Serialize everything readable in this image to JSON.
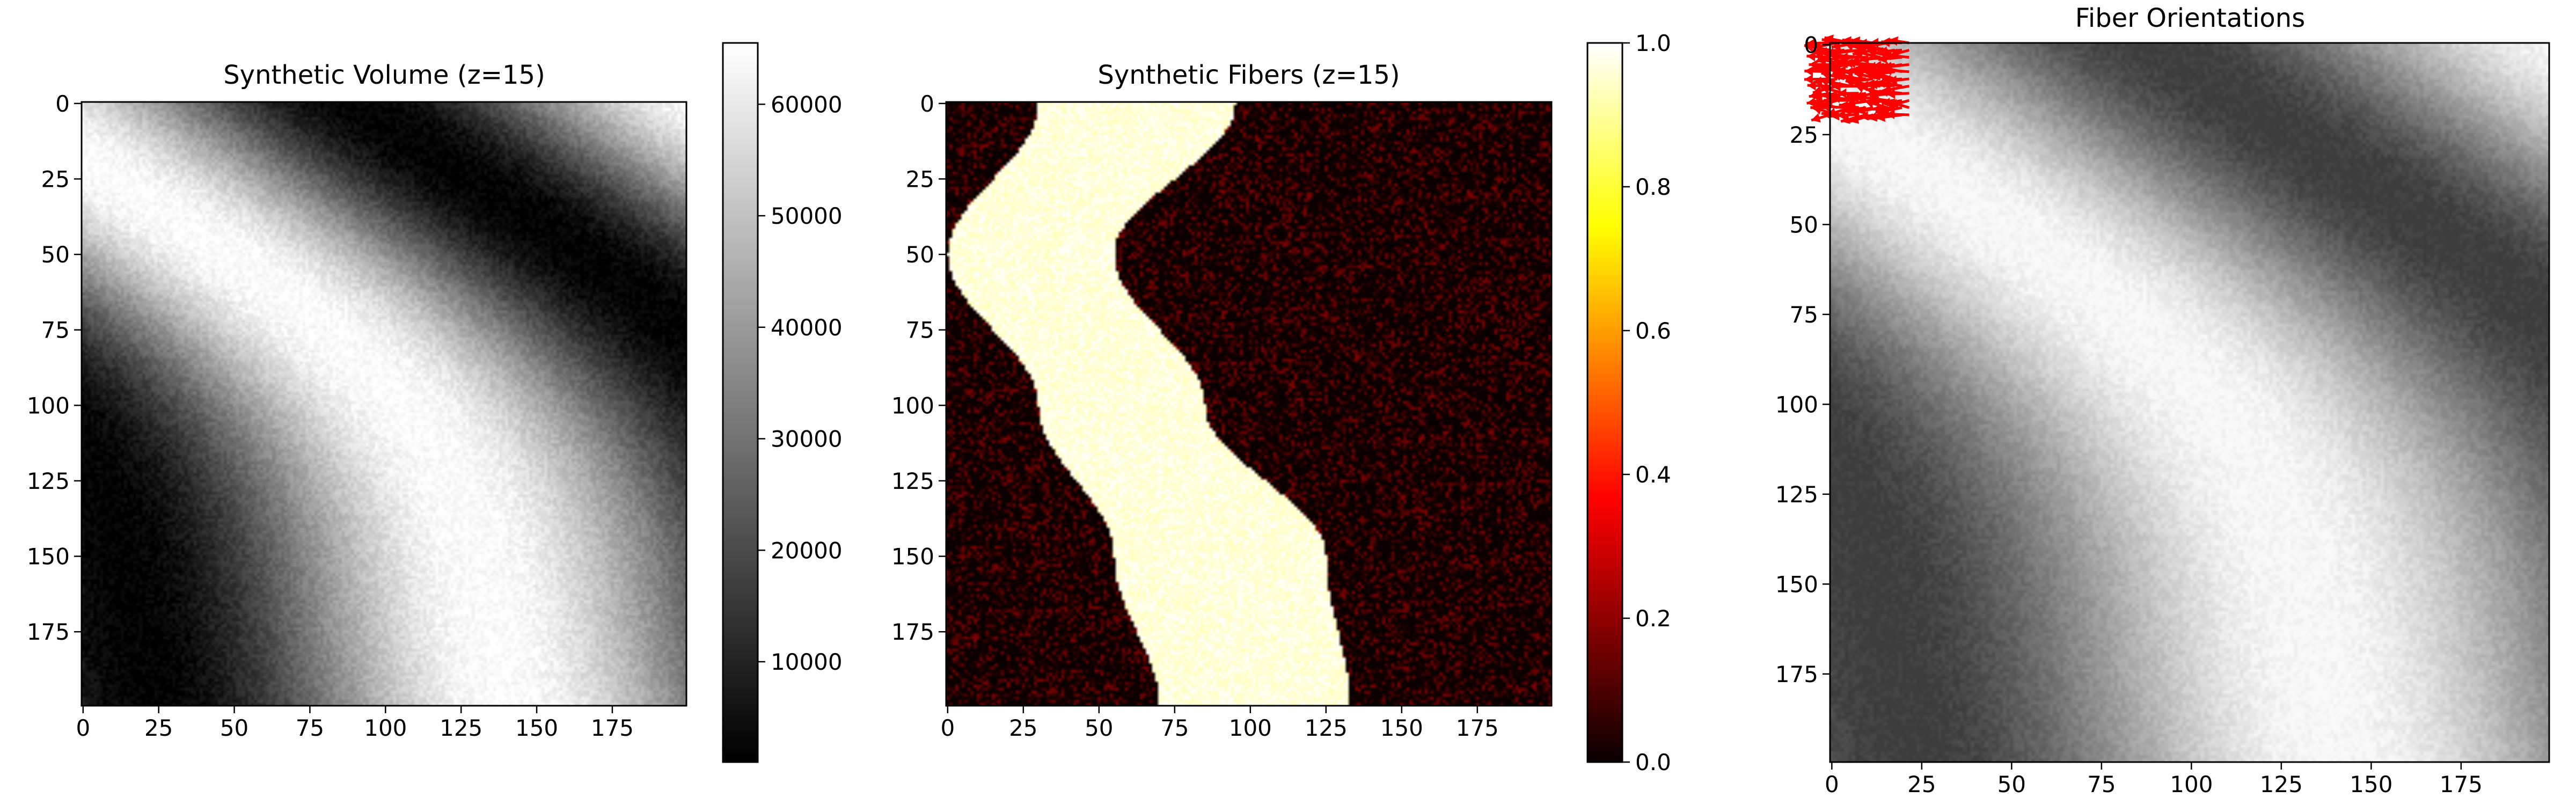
{
  "figure": {
    "background": "#ffffff"
  },
  "chart_data": [
    {
      "type": "heatmap",
      "title": "Synthetic Volume (z=15)",
      "colormap": "gray",
      "x_ticks": [
        0,
        25,
        50,
        75,
        100,
        125,
        150,
        175
      ],
      "y_ticks": [
        0,
        25,
        50,
        75,
        100,
        125,
        150,
        175
      ],
      "x_range": [
        0,
        200
      ],
      "y_range": [
        0,
        200
      ],
      "y_inverted": true,
      "colorbar": {
        "range": [
          1000,
          65500
        ],
        "ticks": [
          10000,
          20000,
          30000,
          40000,
          50000,
          60000
        ],
        "labels": [
          "10000",
          "20000",
          "30000",
          "40000",
          "50000",
          "60000"
        ]
      },
      "pattern": "sinusoidal band: bright diagonal band from upper-left curving to lower-right, dark wedge centered near (x=150,y=60), dark lower-left corner",
      "value_range": [
        1000,
        65500
      ]
    },
    {
      "type": "heatmap",
      "title": "Synthetic Fibers (z=15)",
      "colormap": "hot",
      "x_ticks": [
        0,
        25,
        50,
        75,
        100,
        125,
        150,
        175
      ],
      "y_ticks": [
        0,
        25,
        50,
        75,
        100,
        125,
        150,
        175
      ],
      "x_range": [
        0,
        200
      ],
      "y_range": [
        0,
        200
      ],
      "y_inverted": true,
      "colorbar": {
        "range": [
          0.0,
          1.0
        ],
        "ticks": [
          0.0,
          0.2,
          0.4,
          0.6,
          0.8,
          1.0
        ],
        "labels": [
          "0.0",
          "0.2",
          "0.4",
          "0.6",
          "0.8",
          "1.0"
        ]
      },
      "fiber_band": {
        "center_left_edge": [
          [
            0,
            30
          ],
          [
            50,
            0
          ],
          [
            100,
            30
          ],
          [
            150,
            55
          ],
          [
            200,
            70
          ]
        ],
        "center_right_edge": [
          [
            0,
            95
          ],
          [
            50,
            55
          ],
          [
            100,
            85
          ],
          [
            150,
            125
          ],
          [
            200,
            133
          ]
        ]
      },
      "value_range": [
        0,
        1
      ]
    },
    {
      "type": "heatmap",
      "title": "Fiber Orientations",
      "colormap": "gray",
      "x_ticks": [
        0,
        25,
        50,
        75,
        100,
        125,
        150,
        175
      ],
      "y_ticks": [
        0,
        25,
        50,
        75,
        100,
        125,
        150,
        175
      ],
      "x_range": [
        0,
        200
      ],
      "y_range": [
        0,
        200
      ],
      "y_inverted": true,
      "overlay": {
        "type": "quiver",
        "color": "#ff0000",
        "region_x": [
          0,
          22
        ],
        "region_y": [
          0,
          20
        ]
      },
      "value_range": [
        1000,
        65500
      ]
    }
  ]
}
